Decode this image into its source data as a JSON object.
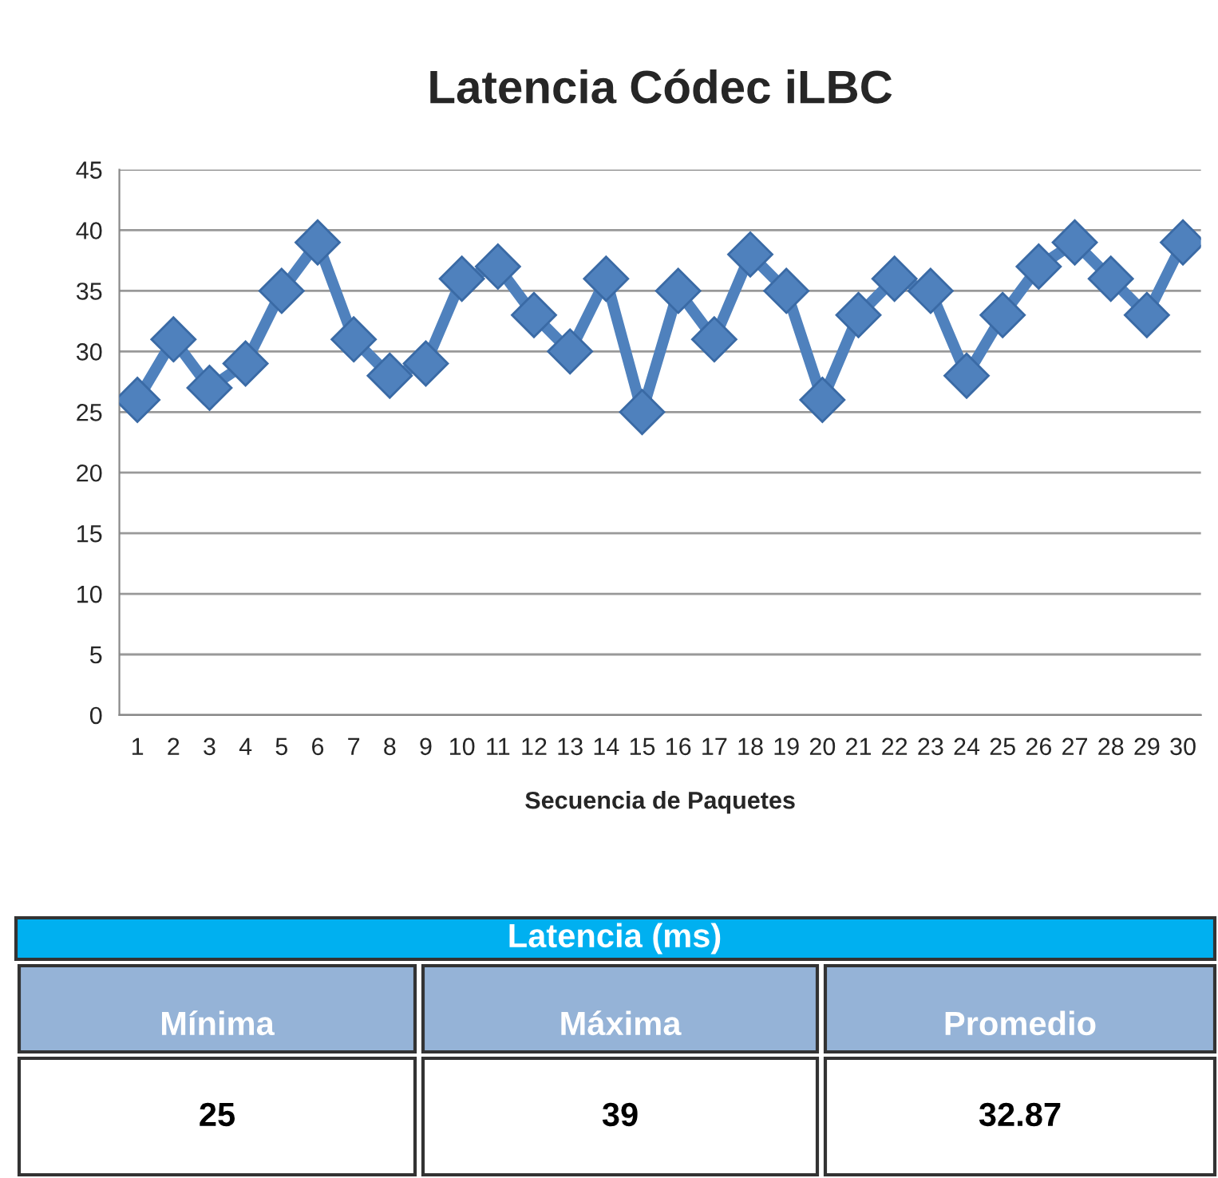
{
  "chart_data": {
    "type": "line",
    "title": "Latencia Códec iLBC",
    "xlabel": "Secuencia de Paquetes",
    "categories": [
      "1",
      "2",
      "3",
      "4",
      "5",
      "6",
      "7",
      "8",
      "9",
      "10",
      "11",
      "12",
      "13",
      "14",
      "15",
      "16",
      "17",
      "18",
      "19",
      "20",
      "21",
      "22",
      "23",
      "24",
      "25",
      "26",
      "27",
      "28",
      "29",
      "30"
    ],
    "series": [
      {
        "color": "#4f81bd",
        "values": [
          26,
          31,
          27,
          29,
          35,
          39,
          31,
          28,
          29,
          36,
          37,
          33,
          30,
          36,
          25,
          35,
          31,
          38,
          35,
          26,
          33,
          36,
          35,
          28,
          33,
          37,
          39,
          36,
          33,
          39
        ]
      }
    ],
    "ylim": [
      0,
      45
    ],
    "yticks": [
      0,
      5,
      10,
      15,
      20,
      25,
      30,
      35,
      40,
      45
    ],
    "grid": "y",
    "marker": "diamond",
    "line_style": "solid",
    "annotations": [
      "Latencia (ms)",
      "Mínima",
      "Máxima",
      "Promedio",
      "25",
      "39",
      "32.87"
    ]
  }
}
